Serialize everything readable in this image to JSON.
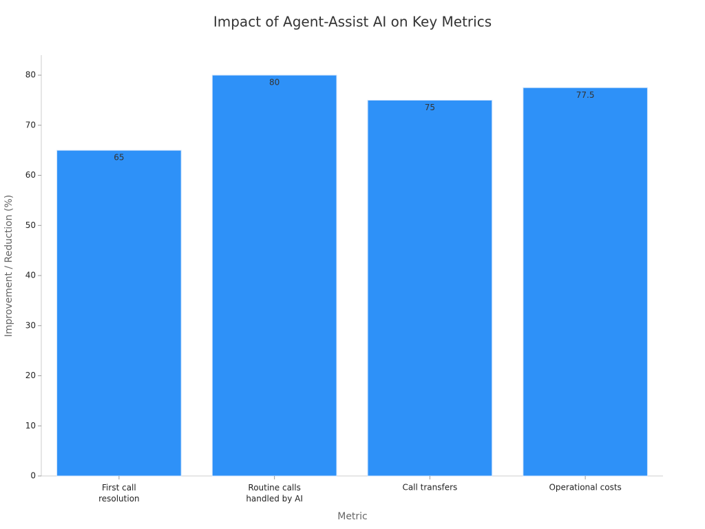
{
  "chart_data": {
    "type": "bar",
    "title": "Impact of Agent-Assist AI on Key Metrics",
    "x_label": "Metric",
    "y_label": "Improvement / Reduction (%)",
    "categories": [
      "First call\nresolution",
      "Routine calls\nhandled by AI",
      "Call transfers",
      "Operational costs"
    ],
    "values": [
      65,
      80,
      75,
      77.5
    ],
    "color": "#2e91f8",
    "ylim": [
      0,
      84
    ],
    "yticks": [
      0,
      10,
      20,
      30,
      40,
      50,
      60,
      70,
      80
    ],
    "grid": false
  }
}
